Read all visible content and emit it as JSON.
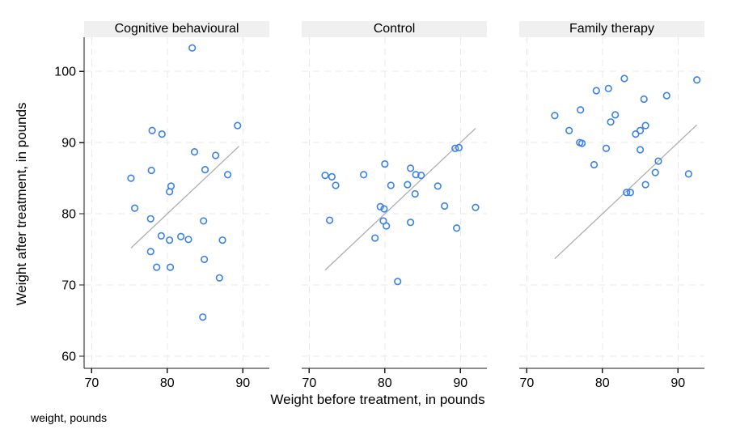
{
  "figure": {
    "ylabel": "Weight after treatment, in pounds",
    "xlabel": "Weight before treatment, in pounds",
    "note": "weight, pounds"
  },
  "chart_data": {
    "type": "scatter",
    "title": "",
    "xlabel": "Weight before treatment, in pounds",
    "ylabel": "Weight after treatment, in pounds",
    "x_ticks": [
      70,
      80,
      90
    ],
    "y_ticks": [
      60,
      70,
      80,
      90,
      100
    ],
    "xlim": [
      69.0,
      93.5
    ],
    "ylim": [
      58.3,
      104.8
    ],
    "grid": {
      "on": true,
      "dashed": true
    },
    "legend": "none",
    "refline_meaning": "identity line y = x over range of x data",
    "style": {
      "marker_color": "#3a82e8",
      "refline_color": "#aeaeae",
      "grid_color": "#e8e8e8",
      "axis_color": "#1a1a1a",
      "header_bg": "#f0f0f0"
    },
    "facets": [
      {
        "title": "Cognitive behavioural",
        "refline": {
          "x1": 75.2,
          "y1": 75.2,
          "x2": 89.5,
          "y2": 89.5
        },
        "points": [
          [
            83.3,
            103.3
          ],
          [
            78.0,
            91.7
          ],
          [
            79.3,
            91.2
          ],
          [
            89.3,
            92.4
          ],
          [
            83.6,
            88.7
          ],
          [
            86.4,
            88.2
          ],
          [
            77.9,
            86.1
          ],
          [
            85.0,
            86.2
          ],
          [
            75.2,
            85.0
          ],
          [
            88.0,
            85.5
          ],
          [
            80.5,
            83.9
          ],
          [
            80.3,
            83.1
          ],
          [
            75.7,
            80.8
          ],
          [
            77.8,
            79.3
          ],
          [
            79.2,
            76.9
          ],
          [
            80.3,
            76.3
          ],
          [
            81.8,
            76.8
          ],
          [
            82.8,
            76.4
          ],
          [
            84.8,
            79.0
          ],
          [
            87.3,
            76.3
          ],
          [
            77.8,
            74.7
          ],
          [
            78.6,
            72.5
          ],
          [
            80.4,
            72.5
          ],
          [
            84.9,
            73.6
          ],
          [
            86.9,
            71.0
          ],
          [
            84.7,
            65.5
          ]
        ]
      },
      {
        "title": "Control",
        "refline": {
          "x1": 72.1,
          "y1": 72.1,
          "x2": 92.0,
          "y2": 92.0
        },
        "points": [
          [
            89.3,
            89.2
          ],
          [
            89.8,
            89.3
          ],
          [
            80.0,
            87.0
          ],
          [
            83.4,
            86.4
          ],
          [
            72.1,
            85.4
          ],
          [
            73.0,
            85.2
          ],
          [
            77.2,
            85.5
          ],
          [
            84.1,
            85.5
          ],
          [
            84.8,
            85.4
          ],
          [
            73.5,
            84.0
          ],
          [
            80.8,
            84.0
          ],
          [
            83.0,
            84.1
          ],
          [
            84.0,
            82.8
          ],
          [
            87.0,
            83.9
          ],
          [
            87.9,
            81.1
          ],
          [
            92.0,
            80.9
          ],
          [
            79.4,
            81.0
          ],
          [
            79.9,
            80.7
          ],
          [
            72.7,
            79.1
          ],
          [
            79.8,
            79.0
          ],
          [
            80.2,
            78.3
          ],
          [
            83.4,
            78.8
          ],
          [
            89.5,
            78.0
          ],
          [
            78.7,
            76.6
          ],
          [
            81.7,
            70.5
          ]
        ]
      },
      {
        "title": "Family therapy",
        "refline": {
          "x1": 73.7,
          "y1": 73.7,
          "x2": 92.5,
          "y2": 92.5
        },
        "points": [
          [
            82.9,
            99.0
          ],
          [
            92.5,
            98.8
          ],
          [
            79.2,
            97.3
          ],
          [
            80.8,
            97.6
          ],
          [
            85.5,
            96.1
          ],
          [
            88.5,
            96.6
          ],
          [
            77.1,
            94.6
          ],
          [
            73.7,
            93.8
          ],
          [
            81.7,
            93.9
          ],
          [
            81.1,
            92.9
          ],
          [
            75.6,
            91.7
          ],
          [
            85.7,
            92.4
          ],
          [
            85.0,
            91.7
          ],
          [
            84.4,
            91.2
          ],
          [
            77.0,
            90.0
          ],
          [
            77.3,
            89.9
          ],
          [
            80.5,
            89.2
          ],
          [
            85.0,
            89.0
          ],
          [
            78.9,
            86.9
          ],
          [
            87.4,
            87.4
          ],
          [
            87.0,
            85.8
          ],
          [
            91.4,
            85.6
          ],
          [
            85.7,
            84.1
          ],
          [
            83.2,
            83.0
          ],
          [
            83.7,
            83.0
          ]
        ]
      }
    ]
  }
}
